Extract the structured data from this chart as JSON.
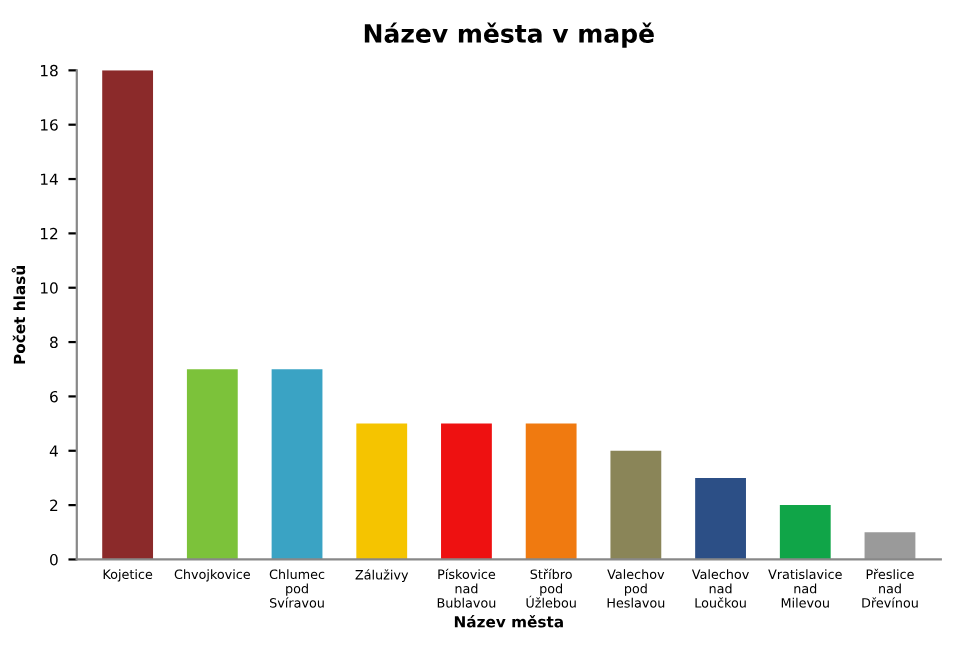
{
  "chart_data": {
    "type": "bar",
    "title": "Název města v mapě",
    "xlabel": "Název města",
    "ylabel": "Počet hlasů",
    "categories": [
      "Kojetice",
      "Chvojkovice",
      "Chlumec pod Svíravou",
      "Záluživy",
      "Pískovice nad Bublavou",
      "Stříbro pod Úžlebou",
      "Valechov pod Heslavou",
      "Valechov nad Loučkou",
      "Vratislavice nad Milevou",
      "Přeslice nad Dřevínou"
    ],
    "values": [
      18,
      7,
      7,
      5,
      5,
      5,
      4,
      3,
      2,
      1
    ],
    "colors": [
      "#8b2a2a",
      "#7cc23a",
      "#3aa3c4",
      "#f5c400",
      "#ee1111",
      "#f07a10",
      "#8a8558",
      "#2c4f86",
      "#10a548",
      "#9a9a9a"
    ],
    "ylim": [
      0,
      18
    ],
    "yticks": [
      0,
      2,
      4,
      6,
      8,
      10,
      12,
      14,
      16,
      18
    ],
    "grid": false
  }
}
